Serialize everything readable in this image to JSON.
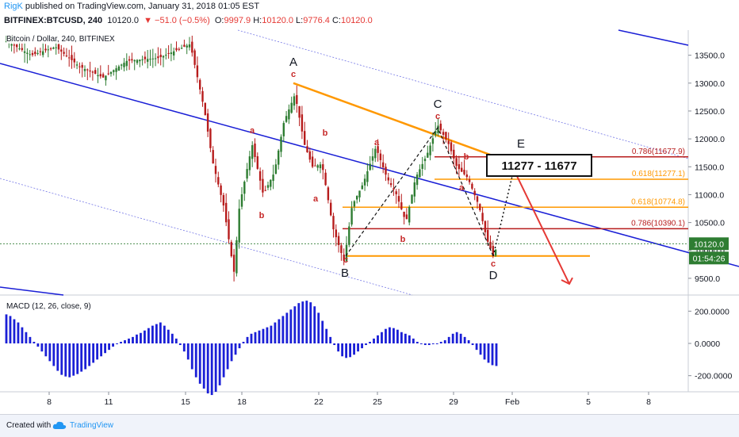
{
  "header": {
    "author": "RigK",
    "published": "published on TradingView.com, January 31, 2018 01:05 EST",
    "symbol": "BITFINEX:BTCUSD, 240",
    "last": "10120.0",
    "change": "▼ −51.0 (−0.5%)",
    "ohlc": {
      "o_label": "O:",
      "o": "9997.9",
      "h_label": "H:",
      "h": "10120.0",
      "l_label": "L:",
      "l": "9776.4",
      "c_label": "C:",
      "c": "10120.0"
    }
  },
  "chart_title": "Bitcoin / Dollar, 240, BITFINEX",
  "macd_title": "MACD (12, 26, close, 9)",
  "footer": {
    "created": "Created with",
    "brand": "TradingView"
  },
  "colors": {
    "up": "#26a69a",
    "down": "#ef5350",
    "candle_up": "#2e7d32",
    "candle_down": "#b71c1c",
    "channel": "#1a1fd6",
    "orange": "#ff9800",
    "fib_786": "#b71c1c",
    "macd": "#1a1fd6",
    "arrow": "#e53935",
    "price_tag": "#2e7d32"
  },
  "chart_data": {
    "type": "candlestick",
    "symbol": "BITFINEX:BTCUSD",
    "interval": "240",
    "ylim": [
      9200,
      13950
    ],
    "y_ticks": [
      9500,
      10000,
      10500,
      11000,
      11500,
      12000,
      12500,
      13000,
      13500
    ],
    "y_tick_labels": [
      "9500.0",
      "10000.0",
      "10500.0",
      "11000.0",
      "11500.0",
      "12000.0",
      "12500.0",
      "13000.0",
      "13500.0"
    ],
    "x_ticks": [
      "8",
      "11",
      "15",
      "18",
      "22",
      "25",
      "29",
      "Feb",
      "5",
      "8"
    ],
    "last_price_tag": "10120.0",
    "countdown_tag": "01:54:26",
    "fib_levels": [
      {
        "label": "0.786(11677.9)",
        "value": 11677.9,
        "color": "#b71c1c"
      },
      {
        "label": "0.618(11277.1)",
        "value": 11277.1,
        "color": "#ff9800"
      },
      {
        "label": "0.618(10774.8)",
        "value": 10774.8,
        "color": "#ff9800"
      },
      {
        "label": "0.786(10390.1)",
        "value": 10390.1,
        "color": "#b71c1c"
      }
    ],
    "target_box": "11277 - 11677",
    "wave_labels": [
      "A",
      "B",
      "C",
      "D",
      "E"
    ],
    "sub_wave_labels": [
      "a",
      "b",
      "c"
    ],
    "macd": {
      "params": "12, 26, close, 9",
      "ylim": [
        -300,
        300
      ],
      "y_ticks": [
        200,
        0,
        -200
      ],
      "y_tick_labels": [
        "200.0000",
        "0.0000",
        "-200.0000"
      ],
      "histogram": [
        180,
        170,
        150,
        130,
        100,
        70,
        40,
        10,
        -20,
        -50,
        -80,
        -110,
        -140,
        -170,
        -195,
        -205,
        -210,
        -200,
        -190,
        -175,
        -160,
        -140,
        -120,
        -100,
        -80,
        -60,
        -40,
        -20,
        -5,
        10,
        20,
        30,
        40,
        55,
        65,
        80,
        95,
        110,
        120,
        130,
        110,
        85,
        60,
        30,
        -10,
        -50,
        -100,
        -160,
        -210,
        -250,
        -280,
        -310,
        -320,
        -300,
        -260,
        -210,
        -160,
        -110,
        -70,
        -30,
        10,
        40,
        60,
        70,
        80,
        90,
        100,
        110,
        130,
        150,
        170,
        190,
        210,
        230,
        250,
        260,
        265,
        255,
        230,
        190,
        140,
        90,
        40,
        -10,
        -50,
        -80,
        -90,
        -85,
        -70,
        -50,
        -30,
        -10,
        10,
        30,
        50,
        70,
        90,
        100,
        95,
        85,
        70,
        60,
        50,
        30,
        10,
        -5,
        -10,
        -10,
        -5,
        0,
        10,
        20,
        40,
        60,
        70,
        60,
        40,
        20,
        -10,
        -40,
        -70,
        -100,
        -120,
        -135,
        -140
      ]
    }
  }
}
